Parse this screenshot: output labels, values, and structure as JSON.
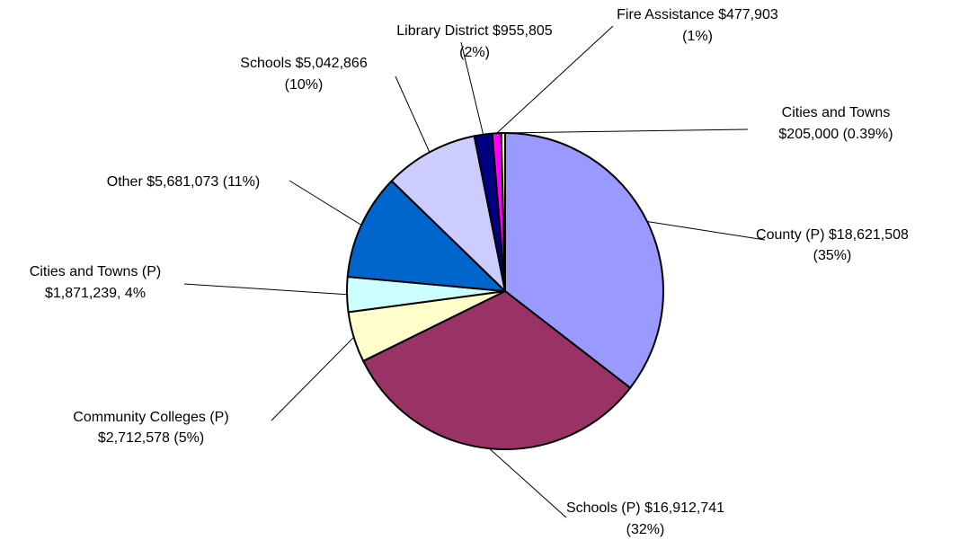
{
  "chart_data": {
    "type": "pie",
    "title": "",
    "series": [
      {
        "values": [
          {
            "label_lines": [
              "County (P) $18,621,508",
              "(35%)"
            ],
            "value": 18621508,
            "percent": "35%",
            "color": "#9999FF"
          },
          {
            "label_lines": [
              "Schools (P) $16,912,741",
              "(32%)"
            ],
            "value": 16912741,
            "percent": "32%",
            "color": "#993366"
          },
          {
            "label_lines": [
              "Community Colleges (P)",
              "$2,712,578 (5%)"
            ],
            "value": 2712578,
            "percent": "5%",
            "color": "#FFFFCC"
          },
          {
            "label_lines": [
              "Cities and Towns (P)",
              "$1,871,239, 4%"
            ],
            "value": 1871239,
            "percent": "4%",
            "color": "#CCFFFF"
          },
          {
            "label_lines": [
              "Other $5,681,073 (11%)"
            ],
            "value": 5681073,
            "percent": "11%",
            "color": "#0066CC"
          },
          {
            "label_lines": [
              "Schools $5,042,866",
              "(10%)"
            ],
            "value": 5042866,
            "percent": "10%",
            "color": "#CCCCFF"
          },
          {
            "label_lines": [
              "Library District $955,805",
              "(2%)"
            ],
            "value": 955805,
            "percent": "2%",
            "color": "#000080"
          },
          {
            "label_lines": [
              "Fire Assistance $477,903",
              "(1%)"
            ],
            "value": 477903,
            "percent": "1%",
            "color": "#FF00FF"
          },
          {
            "label_lines": [
              "Cities and Towns",
              "$205,000 (0.39%)"
            ],
            "value": 205000,
            "percent": "0.39%",
            "color": "#FFFF99"
          }
        ]
      }
    ],
    "start_angle": "12 o'clock, clockwise",
    "legend": "none; slices labeled directly with leader lines"
  }
}
